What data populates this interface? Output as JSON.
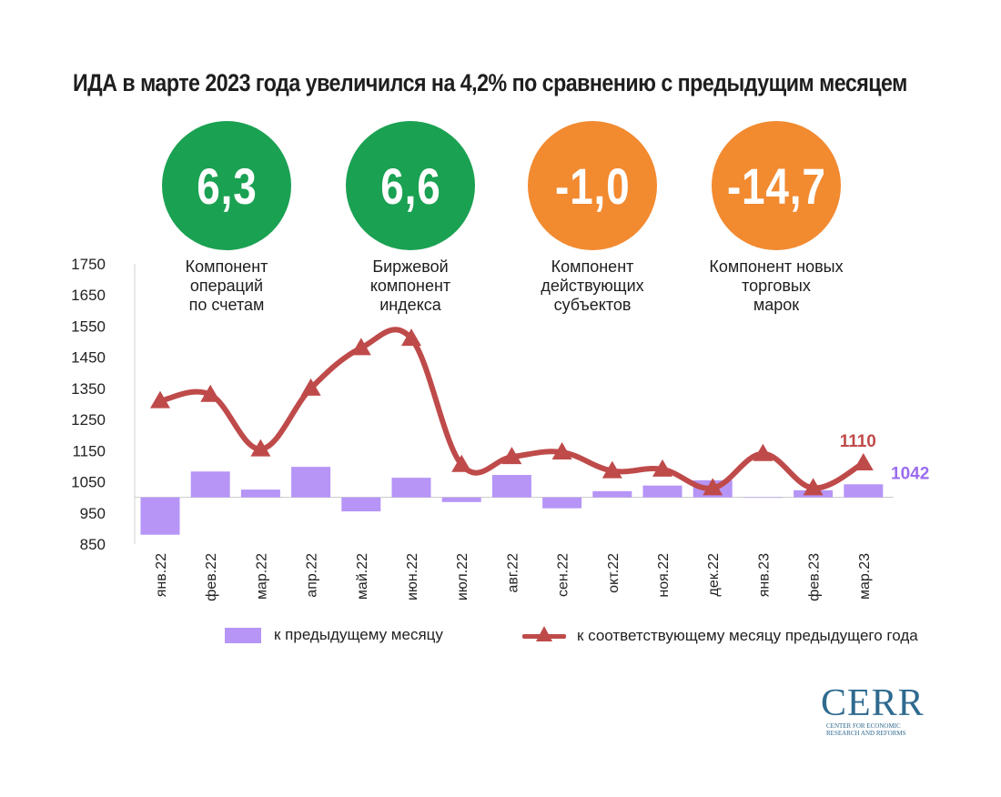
{
  "title": "ИДА в марте 2023 года увеличился на 4,2% по сравнению с предыдущим месяцем",
  "components": [
    {
      "value": "6,3",
      "label_lines": [
        "Компонент",
        "операций",
        "по счетам"
      ],
      "color": "#1aa152"
    },
    {
      "value": "6,6",
      "label_lines": [
        "Биржевой",
        "компонент",
        "индекса"
      ],
      "color": "#1aa152"
    },
    {
      "value": "-1,0",
      "label_lines": [
        "Компонент",
        "действующих",
        "субъектов"
      ],
      "color": "#f28a30"
    },
    {
      "value": "-14,7",
      "label_lines": [
        "Компонент новых",
        "торговых",
        "марок"
      ],
      "color": "#f28a30"
    }
  ],
  "legend": {
    "bar_label": "к предыдущему месяцу",
    "line_label": "к соответствующему месяцу предыдущего года"
  },
  "logo": {
    "main": "CERR",
    "sub_lines": [
      "CENTER FOR ECONOMIC",
      "RESEARCH AND REFORMS"
    ]
  },
  "colors": {
    "bar": "#b695f7",
    "line": "#bf4a4a",
    "last_line_label": "#bf4a4a",
    "last_bar_label": "#9b6cf0"
  },
  "chart_data": {
    "type": "bar",
    "categories": [
      "янв.22",
      "фев.22",
      "мар.22",
      "апр.22",
      "май.22",
      "июн.22",
      "июл.22",
      "авг.22",
      "сен.22",
      "окт.22",
      "ноя.22",
      "дек.22",
      "янв.23",
      "фев.23",
      "мар.23"
    ],
    "ylim": [
      850,
      1750
    ],
    "yticks": [
      850,
      950,
      1050,
      1150,
      1250,
      1350,
      1450,
      1550,
      1650,
      1750
    ],
    "bar_baseline": 1000,
    "series": [
      {
        "name": "к предыдущему месяцу",
        "type": "bar",
        "values": [
          880,
          1083,
          1025,
          1098,
          955,
          1063,
          985,
          1072,
          965,
          1020,
          1038,
          1055,
          1000,
          1023,
          1042
        ]
      },
      {
        "name": "к соответствующему месяцу предыдущего года",
        "type": "line",
        "marker": "triangle",
        "values": [
          1310,
          1330,
          1155,
          1350,
          1480,
          1510,
          1105,
          1130,
          1145,
          1085,
          1090,
          1030,
          1140,
          1030,
          1110
        ]
      }
    ],
    "data_labels": {
      "line_last": "1110",
      "bar_last": "1042"
    }
  }
}
